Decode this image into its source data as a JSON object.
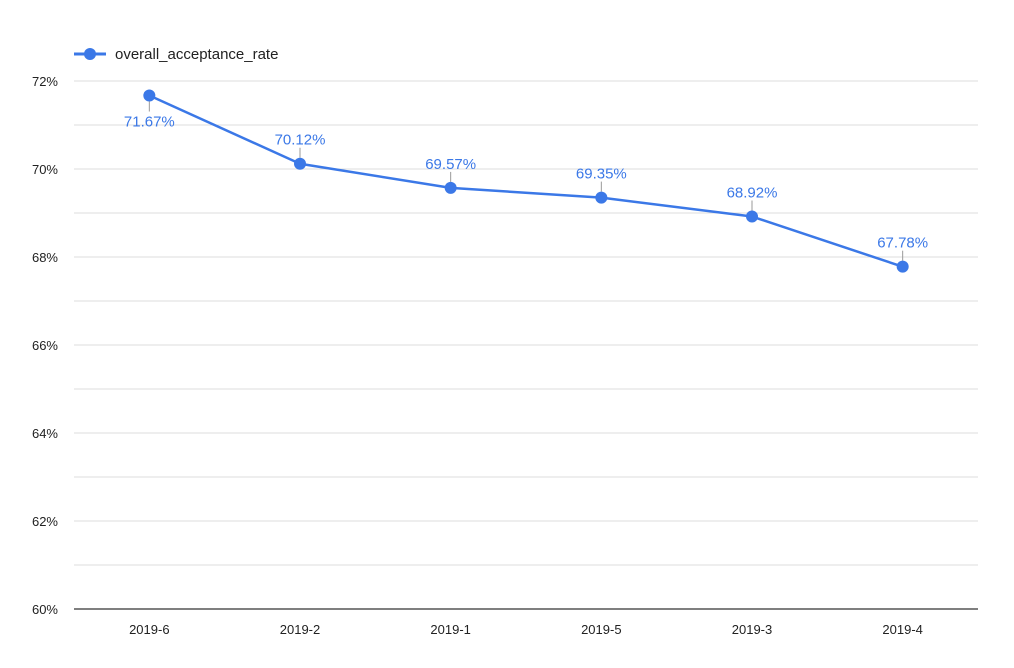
{
  "chart_data": {
    "type": "line",
    "categories": [
      "2019-6",
      "2019-2",
      "2019-1",
      "2019-5",
      "2019-3",
      "2019-4"
    ],
    "series": [
      {
        "name": "overall_acceptance_rate",
        "values": [
          71.67,
          70.12,
          69.57,
          69.35,
          68.92,
          67.78
        ],
        "labels": [
          "71.67%",
          "70.12%",
          "69.57%",
          "69.35%",
          "68.92%",
          "67.78%"
        ]
      }
    ],
    "yticks": [
      {
        "value": 72,
        "label": "72%"
      },
      {
        "value": 70,
        "label": "70%"
      },
      {
        "value": 68,
        "label": "68%"
      },
      {
        "value": 66,
        "label": "66%"
      },
      {
        "value": 64,
        "label": "64%"
      },
      {
        "value": 62,
        "label": "62%"
      },
      {
        "value": 60,
        "label": "60%"
      }
    ],
    "ylim": [
      60,
      72
    ],
    "grid": true,
    "legend_position": "top-left",
    "colors": {
      "series": "#3b78e7",
      "grid": "#dddddd",
      "axis": "#333333",
      "text": "#222222"
    }
  }
}
